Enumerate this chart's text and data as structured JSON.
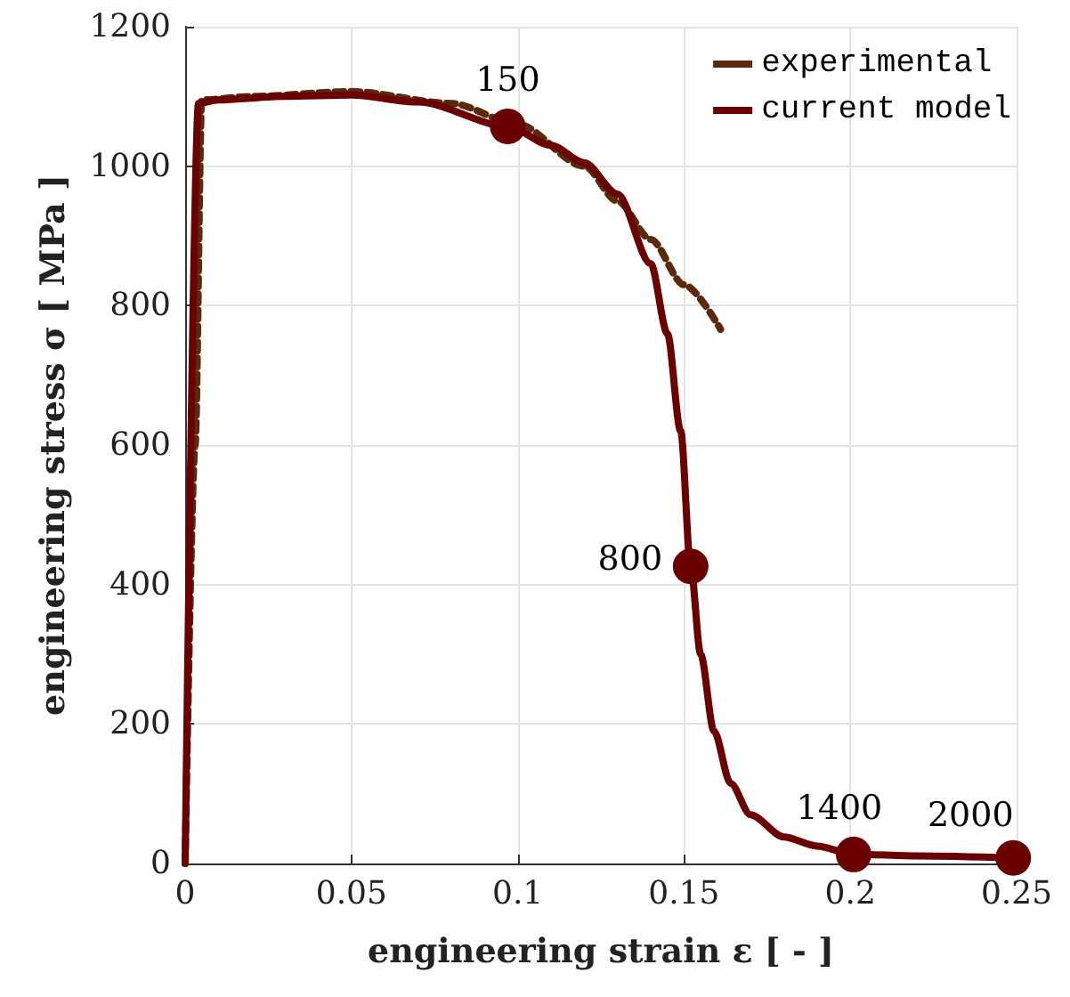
{
  "chart_data": {
    "type": "line",
    "xlabel": "engineering strain ε [ - ]",
    "ylabel": "engineering stress σ [ MPa ]",
    "xlim": [
      0,
      0.25
    ],
    "xticks": [
      0,
      0.05,
      0.1,
      0.15,
      0.2,
      0.25
    ],
    "ylim": [
      0,
      1200
    ],
    "yticks": [
      0,
      200,
      400,
      600,
      800,
      1000,
      1200
    ],
    "grid": true,
    "legend": "top right",
    "marker": "none",
    "series": [
      {
        "name": "experimental",
        "color": "#5a2a0a",
        "line_style": "dashed",
        "x": [
          0,
          0.003,
          0.005,
          0.02,
          0.05,
          0.08,
          0.1,
          0.12,
          0.13,
          0.14,
          0.15,
          0.161
        ],
        "values": [
          0,
          600,
          1095,
          1100,
          1107,
          1090,
          1060,
          1000,
          950,
          895,
          830,
          766
        ]
      },
      {
        "name": "current model",
        "color": "#6b0000",
        "line_style": "solid",
        "x": [
          0,
          0.004,
          0.01,
          0.03,
          0.05,
          0.07,
          0.097,
          0.11,
          0.12,
          0.13,
          0.14,
          0.145,
          0.149,
          0.152,
          0.155,
          0.159,
          0.164,
          0.17,
          0.18,
          0.19,
          0.201,
          0.22,
          0.249
        ],
        "values": [
          0,
          1090,
          1095,
          1100,
          1102,
          1092,
          1057,
          1030,
          1005,
          960,
          860,
          760,
          620,
          426,
          300,
          190,
          115,
          70,
          38,
          25,
          13,
          11,
          8
        ]
      },
      {
        "type": "scatter",
        "color": "#6b0000",
        "marker": "circle",
        "x": [
          0.097,
          0.152,
          0.201,
          0.249
        ],
        "values": [
          1057,
          426,
          13,
          8
        ]
      }
    ],
    "annotations": [
      {
        "text": "150",
        "x": 0.097,
        "y": 1057
      },
      {
        "text": "800",
        "x": 0.152,
        "y": 426
      },
      {
        "text": "1400",
        "x": 0.201,
        "y": 13
      },
      {
        "text": "2000",
        "x": 0.249,
        "y": 8
      }
    ]
  }
}
